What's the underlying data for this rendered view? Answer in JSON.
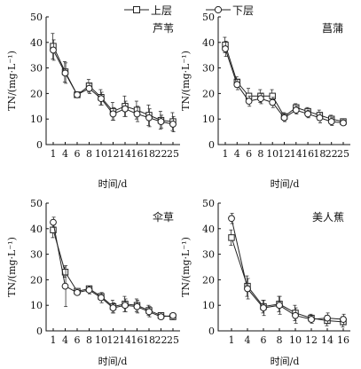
{
  "legend": {
    "upper_label": "上层",
    "lower_label": "下层"
  },
  "chart_data": [
    {
      "type": "line",
      "title": "芦苇",
      "xlabel": "时间/d",
      "ylabel": "TN/(mg·L⁻¹)",
      "ylim": [
        0,
        50
      ],
      "yticks": [
        "0",
        "10",
        "20",
        "30",
        "40",
        "50"
      ],
      "categories": [
        "1",
        "4",
        "6",
        "8",
        "10",
        "12",
        "14",
        "16",
        "18",
        "22",
        "25"
      ],
      "series": [
        {
          "name": "上层",
          "marker": "square",
          "values": [
            38.5,
            28.5,
            19.5,
            23,
            18.5,
            13,
            15,
            13.5,
            11.5,
            9.5,
            9
          ],
          "errors": [
            5,
            4,
            1,
            2.5,
            3,
            3.5,
            4,
            3.5,
            4,
            3.5,
            3.5
          ]
        },
        {
          "name": "下层",
          "marker": "circle",
          "values": [
            37,
            28,
            19.5,
            22,
            18,
            12,
            14,
            12,
            10.5,
            9,
            8
          ],
          "errors": [
            4,
            4,
            1,
            2,
            2.5,
            2.5,
            3,
            3,
            3.5,
            2.5,
            3
          ]
        }
      ]
    },
    {
      "type": "line",
      "title": "菖蒲",
      "xlabel": "时间/d",
      "ylabel": "TN/(mg·L⁻¹)",
      "ylim": [
        0,
        50
      ],
      "yticks": [
        "0",
        "10",
        "20",
        "30",
        "40",
        "50"
      ],
      "categories": [
        "1",
        "4",
        "6",
        "8",
        "10",
        "12",
        "14",
        "16",
        "18",
        "22",
        "25"
      ],
      "series": [
        {
          "name": "上层",
          "marker": "square",
          "values": [
            39,
            24.5,
            19,
            19,
            19,
            11,
            14.5,
            13,
            11.5,
            10,
            9
          ],
          "errors": [
            3,
            2,
            3,
            2.5,
            2.5,
            1.5,
            1.5,
            1.5,
            2,
            1.5,
            1
          ]
        },
        {
          "name": "下层",
          "marker": "circle",
          "values": [
            37.5,
            23.5,
            17,
            18,
            16.5,
            10.5,
            13.5,
            12,
            10.5,
            9,
            8.5
          ],
          "errors": [
            3,
            2,
            2,
            2,
            2,
            1.5,
            1.5,
            1.5,
            2,
            1.5,
            1
          ]
        }
      ]
    },
    {
      "type": "line",
      "title": "伞草",
      "xlabel": "时间/d",
      "ylabel": "TN/(mg·L⁻¹)",
      "ylim": [
        0,
        50
      ],
      "yticks": [
        "0",
        "10",
        "20",
        "30",
        "40",
        "50"
      ],
      "categories": [
        "1",
        "4",
        "6",
        "8",
        "10",
        "12",
        "14",
        "16",
        "18",
        "22",
        "25"
      ],
      "series": [
        {
          "name": "上层",
          "marker": "square",
          "values": [
            39.5,
            23,
            15.5,
            16.5,
            13.5,
            9.5,
            10.5,
            10,
            8,
            6,
            5.5
          ],
          "errors": [
            3,
            2,
            1,
            1,
            1,
            2.5,
            3,
            2.5,
            2,
            1,
            1
          ]
        },
        {
          "name": "下层",
          "marker": "circle",
          "values": [
            42.5,
            17.5,
            15,
            16,
            13,
            9,
            10,
            9.5,
            7.5,
            5.5,
            6
          ],
          "errors": [
            2,
            8,
            1,
            1.5,
            2,
            2,
            2.5,
            2.5,
            2,
            1,
            1
          ]
        }
      ]
    },
    {
      "type": "line",
      "title": "美人蕉",
      "xlabel": "时间/d",
      "ylabel": "TN/(mg·L⁻¹)",
      "ylim": [
        0,
        50
      ],
      "yticks": [
        "0",
        "10",
        "20",
        "30",
        "40",
        "50"
      ],
      "categories": [
        "1",
        "4",
        "6",
        "8",
        "10",
        "12",
        "14",
        "16"
      ],
      "series": [
        {
          "name": "上层",
          "marker": "square",
          "values": [
            36.5,
            17.5,
            9.5,
            10.5,
            7,
            5,
            4,
            3.5
          ],
          "errors": [
            3,
            4,
            2.5,
            3,
            3,
            1.5,
            2,
            2
          ]
        },
        {
          "name": "下层",
          "marker": "circle",
          "values": [
            44,
            16.5,
            9,
            10,
            6,
            4.5,
            5,
            4.5
          ],
          "errors": [
            2,
            4,
            3,
            3.5,
            3,
            1.5,
            2,
            2
          ]
        }
      ]
    }
  ]
}
